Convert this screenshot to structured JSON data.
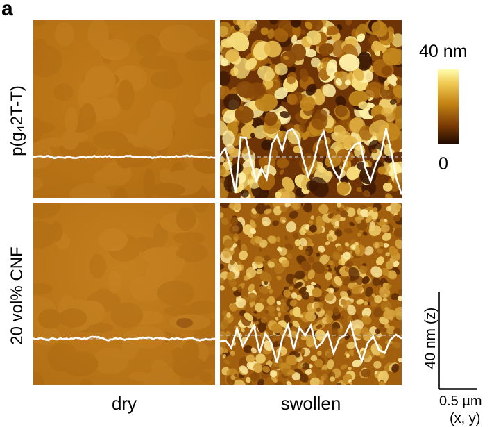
{
  "panel_letter": "a",
  "row_labels": {
    "top": "p(g₄2T-T)",
    "bottom": "20 vol% CNF"
  },
  "column_labels": {
    "dry": "dry",
    "swollen": "swollen"
  },
  "colorbar": {
    "max_label": "40 nm",
    "min_label": "0",
    "colors": [
      "#fffcb0",
      "#f0cc55",
      "#c58414",
      "#7a3a05",
      "#1d0900"
    ]
  },
  "scale_bar": {
    "z_label": "40 nm (z)",
    "xy_label": "0.5 µm",
    "xy_axes": "(x, y)"
  },
  "profile_line_color": "#ffffff",
  "dry_surface_color": "#b87314",
  "swollen_surface_color": "#c68a22"
}
